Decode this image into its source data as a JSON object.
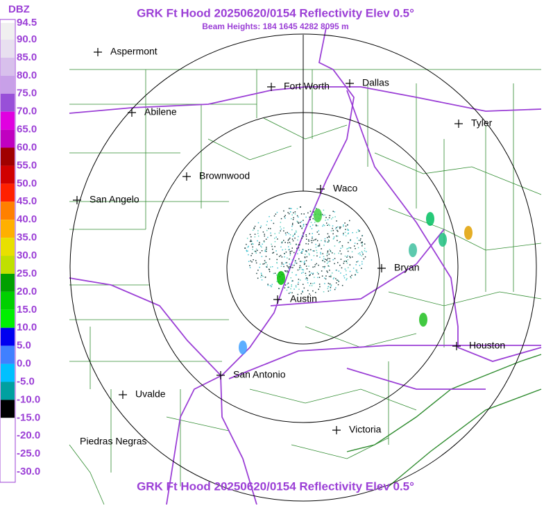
{
  "header": {
    "title": "GRK Ft Hood 20250620/0154 Reflectivity Elev 0.5°",
    "subtitle": "Beam Heights: 184 1645 4282 8095 m"
  },
  "footer": {
    "title": "GRK Ft Hood 20250620/0154 Reflectivity Elev 0.5°"
  },
  "legend": {
    "unit": "DBZ",
    "labels": [
      "94.5",
      "90.0",
      "85.0",
      "80.0",
      "75.0",
      "70.0",
      "65.0",
      "60.0",
      "55.0",
      "50.0",
      "45.0",
      "40.0",
      "35.0",
      "30.0",
      "25.0",
      "20.0",
      "15.0",
      "10.0",
      "5.0",
      "0.0",
      "-5.0",
      "-10.0",
      "-15.0",
      "-20.0",
      "-25.0",
      "-30.0"
    ]
  },
  "cities": [
    "Aspermont",
    "Abilene",
    "Fort Worth",
    "Dallas",
    "Tyler",
    "Brownwood",
    "San Angelo",
    "Waco",
    "Bryan",
    "Austin",
    "Houston",
    "San Antonio",
    "Uvalde",
    "Victoria",
    "Piedras Negras"
  ]
}
